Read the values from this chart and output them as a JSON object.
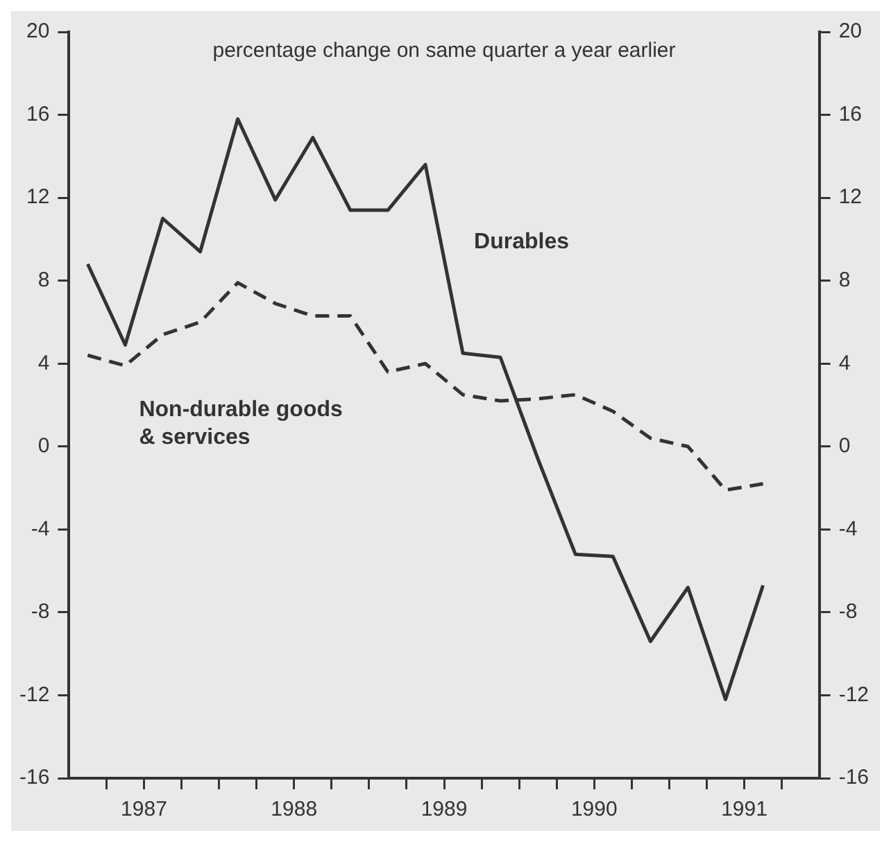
{
  "chart_data": {
    "type": "line",
    "annotations": [
      "percentage change on same quarter a year earlier"
    ],
    "x": [
      1987.125,
      1987.375,
      1987.625,
      1987.875,
      1988.125,
      1988.375,
      1988.625,
      1988.875,
      1989.125,
      1989.375,
      1989.625,
      1989.875,
      1990.125,
      1990.375,
      1990.625,
      1990.875,
      1991.125,
      1991.375,
      1991.625
    ],
    "series": [
      {
        "name": "Durables",
        "color": "#333333",
        "line_style": "solid",
        "values": [
          8.8,
          4.9,
          11.0,
          9.4,
          15.8,
          11.9,
          14.9,
          11.4,
          11.4,
          13.6,
          4.5,
          4.3,
          -0.6,
          -5.2,
          -5.3,
          -9.4,
          -6.8,
          -12.2,
          -6.7
        ]
      },
      {
        "name": "Non-durable goods & services",
        "color": "#333333",
        "line_style": "dashed",
        "values": [
          4.4,
          3.9,
          5.4,
          6.0,
          7.9,
          6.9,
          6.3,
          6.3,
          3.6,
          4.0,
          2.5,
          2.2,
          2.3,
          2.5,
          1.7,
          0.4,
          0.0,
          -2.1,
          -1.8
        ]
      }
    ],
    "xlim": [
      1987,
      1992
    ],
    "xticks": [
      {
        "value": 1987.25,
        "label": null
      },
      {
        "value": 1987.5,
        "label": "1987"
      },
      {
        "value": 1987.75,
        "label": null
      },
      {
        "value": 1988,
        "label": null
      },
      {
        "value": 1988.25,
        "label": null
      },
      {
        "value": 1988.5,
        "label": "1988"
      },
      {
        "value": 1988.75,
        "label": null
      },
      {
        "value": 1989,
        "label": null
      },
      {
        "value": 1989.25,
        "label": null
      },
      {
        "value": 1989.5,
        "label": "1989"
      },
      {
        "value": 1989.75,
        "label": null
      },
      {
        "value": 1990,
        "label": null
      },
      {
        "value": 1990.25,
        "label": null
      },
      {
        "value": 1990.5,
        "label": "1990"
      },
      {
        "value": 1990.75,
        "label": null
      },
      {
        "value": 1991,
        "label": null
      },
      {
        "value": 1991.25,
        "label": null
      },
      {
        "value": 1991.5,
        "label": "1991"
      },
      {
        "value": 1991.75,
        "label": null
      }
    ],
    "ylim": [
      -16,
      20
    ],
    "yticks": [
      -16,
      -12,
      -8,
      -4,
      0,
      4,
      8,
      12,
      16,
      20
    ],
    "y2lim": [
      -16,
      20
    ],
    "y2ticks": [
      -16,
      -12,
      -8,
      -4,
      0,
      4,
      8,
      12,
      16,
      20
    ],
    "grid": false,
    "legend": false,
    "marker": "none"
  }
}
